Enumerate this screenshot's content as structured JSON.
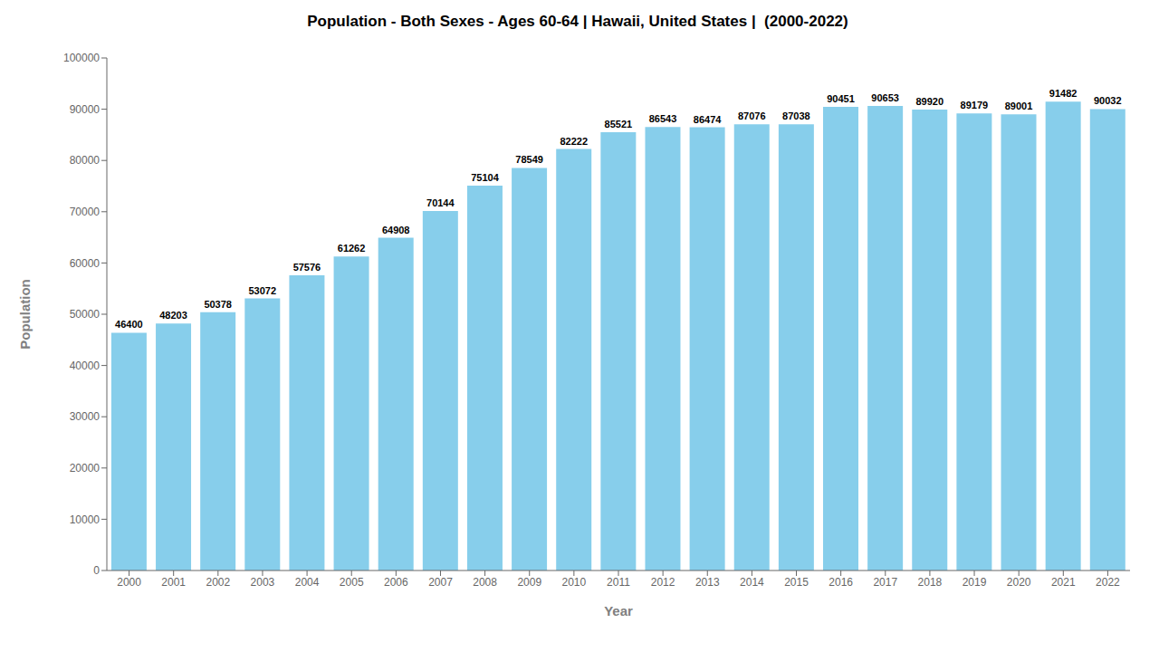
{
  "chart_data": {
    "type": "bar",
    "title": "Population - Both Sexes - Ages 60-64 | Hawaii, United States |  (2000-2022)",
    "xlabel": "Year",
    "ylabel": "Population",
    "categories": [
      "2000",
      "2001",
      "2002",
      "2003",
      "2004",
      "2005",
      "2006",
      "2007",
      "2008",
      "2009",
      "2010",
      "2011",
      "2012",
      "2013",
      "2014",
      "2015",
      "2016",
      "2017",
      "2018",
      "2019",
      "2020",
      "2021",
      "2022"
    ],
    "values": [
      46400,
      48203,
      50378,
      53072,
      57576,
      61262,
      64908,
      70144,
      75104,
      78549,
      82222,
      85521,
      86543,
      86474,
      87076,
      87038,
      90451,
      90653,
      89920,
      89179,
      89001,
      91482,
      90032
    ],
    "color": "#87ceeb",
    "ylim": [
      0,
      100000
    ],
    "yticks": [
      0,
      10000,
      20000,
      30000,
      40000,
      50000,
      60000,
      70000,
      80000,
      90000,
      100000
    ],
    "grid": false,
    "data_labels": true
  }
}
